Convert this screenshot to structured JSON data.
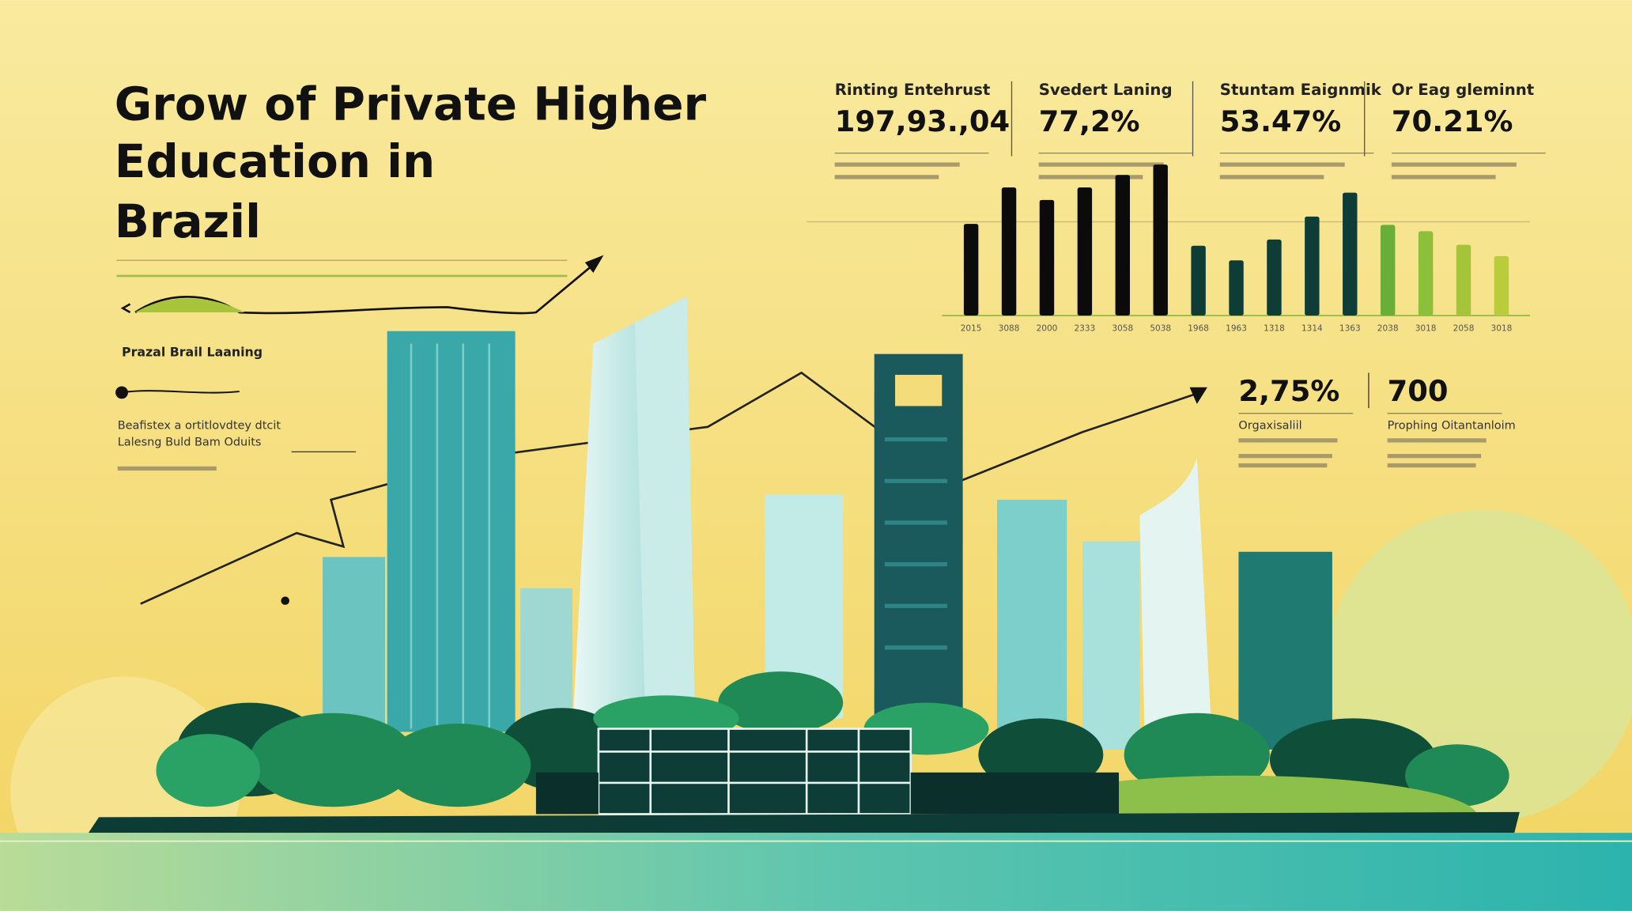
{
  "header": {
    "title_lines": [
      "Grow of Private Higher",
      "Education in",
      "Brazil"
    ]
  },
  "stats": [
    {
      "label": "Rinting Entehrust",
      "value": "197,93.,04"
    },
    {
      "label": "Svedert Laning",
      "value": "77,2%"
    },
    {
      "label": "Stuntam Eaignmik",
      "value": "53.47%"
    },
    {
      "label": "Or Eag gleminnt",
      "value": "70.21%"
    }
  ],
  "lower_stats": [
    {
      "label": "Orgaxisaliil",
      "value": "2,75%"
    },
    {
      "label": "Prophing Oitantanloim",
      "value": "700"
    }
  ],
  "side_notes": {
    "heading": "Prazal Brail Laaning",
    "lines": [
      "Beafistex a ortitlovdtey dtcit",
      "Lalesng Buld Bam Oduits"
    ]
  },
  "bar_chart": {
    "type": "bar",
    "categories": [
      "2015",
      "3088",
      "2000",
      "2333",
      "3058",
      "5038",
      "1968",
      "1963",
      "1318",
      "1314",
      "1363",
      "2038",
      "3018",
      "2058",
      "3018"
    ],
    "values": [
      88,
      123,
      111,
      123,
      135,
      145,
      67,
      53,
      73,
      95,
      118,
      87,
      81,
      68,
      57
    ],
    "colors": [
      "#0b0b0b",
      "#0b0b0b",
      "#0b0b0b",
      "#0b0b0b",
      "#0b0b0b",
      "#0b0b0b",
      "#0e3c36",
      "#0e3c36",
      "#0e3c36",
      "#0e3c36",
      "#0e3c36",
      "#6aae3a",
      "#8cbf3a",
      "#a6c43a",
      "#b9cc3a"
    ],
    "ylim": [
      0,
      150
    ]
  }
}
